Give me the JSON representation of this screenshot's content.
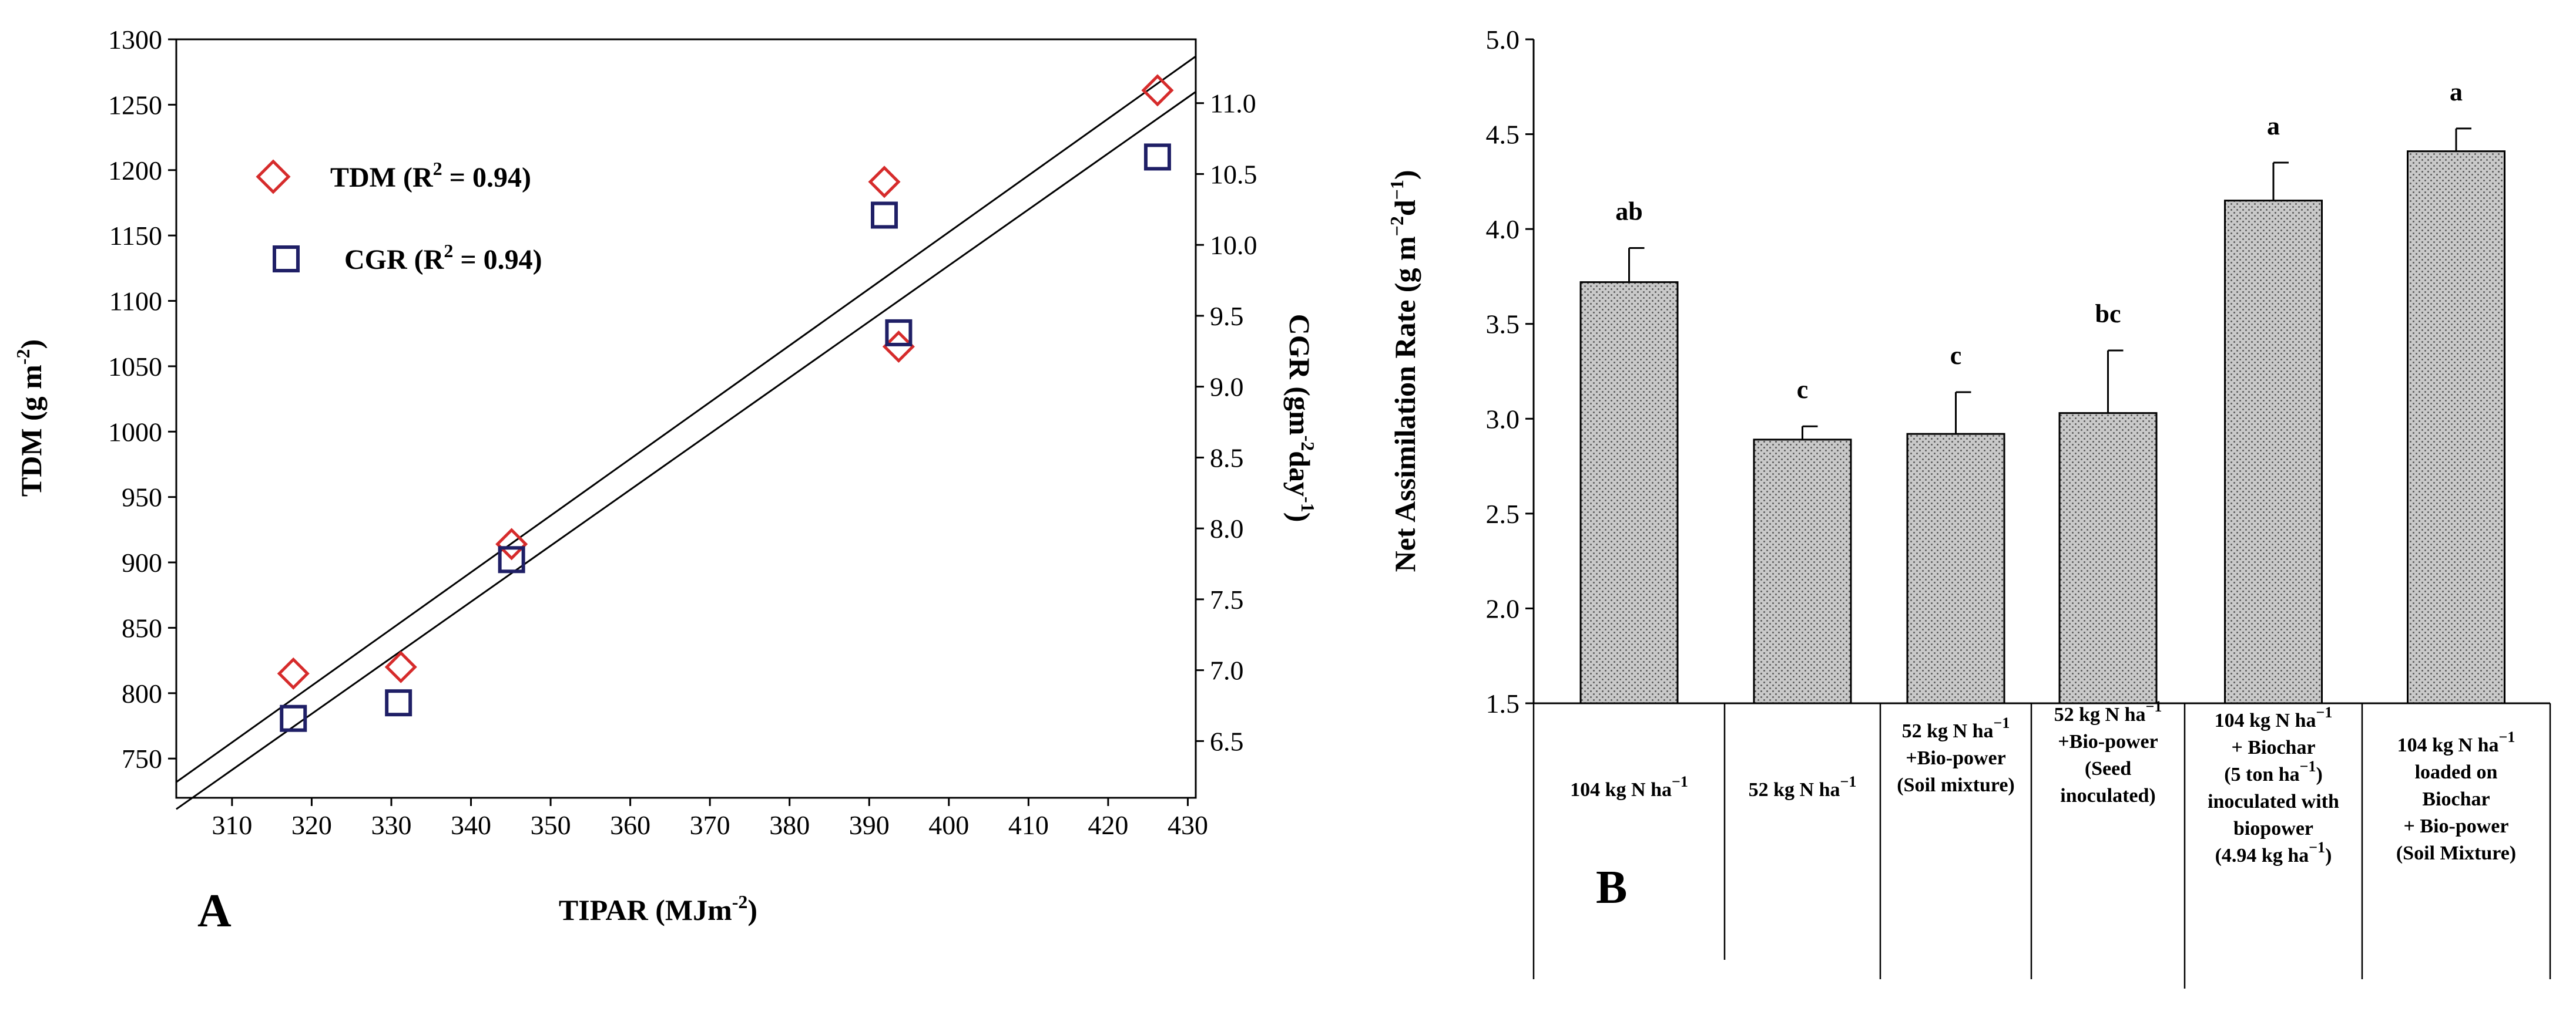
{
  "panel_labels": {
    "a": "A",
    "b": "B"
  },
  "chart_data": [
    {
      "type": "scatter",
      "panel": "A",
      "xlabel": "TIPAR (MJm",
      "xlabel_sup": "-2",
      "xlabel_tail": ")",
      "ylabel": "TDM (g m",
      "ylabel_sup": "-2",
      "ylabel_tail": ")",
      "y2label": "CGR (gm",
      "y2label_sup": "-2",
      "y2label_mid": "day",
      "y2label_sup2": "-1",
      "y2label_tail": ")",
      "xlim": [
        303,
        431
      ],
      "ylim": [
        720,
        1300
      ],
      "y2lim": [
        6.1,
        11.45
      ],
      "xticks": [
        310,
        320,
        330,
        340,
        350,
        360,
        370,
        380,
        390,
        400,
        410,
        420,
        430
      ],
      "yticks": [
        750,
        800,
        850,
        900,
        950,
        1000,
        1050,
        1100,
        1150,
        1200,
        1250,
        1300
      ],
      "y2ticks": [
        "6.5",
        "7.0",
        "7.5",
        "8.0",
        "8.5",
        "9.0",
        "9.5",
        "10.0",
        "10.5",
        "11.0"
      ],
      "series": [
        {
          "name": "TDM",
          "legend": "TDM (R",
          "legend_sup": "2",
          "legend_tail": " = 0.94)",
          "marker": "diamond",
          "color": "#d62b2b",
          "axis": "left",
          "points": [
            [
              317.7,
              815
            ],
            [
              331.2,
              820
            ],
            [
              345.1,
              914
            ],
            [
              391.9,
              1191
            ],
            [
              393.7,
              1065
            ],
            [
              426.2,
              1261
            ]
          ],
          "fit": [
            [
              303,
              732
            ],
            [
              431,
              1287
            ]
          ]
        },
        {
          "name": "CGR",
          "legend": "CGR (R",
          "legend_sup": "2",
          "legend_tail": " = 0.94)",
          "marker": "square",
          "color": "#1f1f66",
          "axis": "right",
          "points": [
            [
              317.7,
              6.66
            ],
            [
              330.9,
              6.77
            ],
            [
              345.1,
              7.78
            ],
            [
              391.9,
              10.21
            ],
            [
              393.7,
              9.38
            ],
            [
              426.2,
              10.62
            ]
          ],
          "fit": [
            [
              303,
              6.02
            ],
            [
              431,
              11.08
            ]
          ]
        }
      ]
    },
    {
      "type": "bar",
      "panel": "B",
      "ylabel": "Net Assimilation Rate (g m",
      "ylabel_sup": "−2",
      "ylabel_mid": "d",
      "ylabel_sup2": "−1",
      "ylabel_tail": ")",
      "ylim": [
        1.5,
        5.0
      ],
      "yticks": [
        "1.5",
        "2.0",
        "2.5",
        "3.0",
        "3.5",
        "4.0",
        "4.5",
        "5.0"
      ],
      "values": [
        3.72,
        2.89,
        2.92,
        3.03,
        4.15,
        4.41
      ],
      "errors": [
        0.18,
        0.07,
        0.22,
        0.33,
        0.2,
        0.12
      ],
      "letters": [
        "ab",
        "c",
        "c",
        "bc",
        "a",
        "a"
      ],
      "categories": [
        "104 kg N ha^−1",
        "52 kg N ha^−1",
        "52 kg N ha^−1 +Bio-power (Soil mixture)",
        "52 kg N ha^−1 +Bio-power (Seed inoculated)",
        "104 kg N ha^−1 + Biochar (5 ton ha^−1) inoculated with biopower (4.94 kg ha^−1)",
        "104 kg N ha^−1 loaded on Biochar + Bio-power (Soil Mixture)"
      ],
      "category_lines": [
        [
          [
            "104 kg N ha",
            "−1"
          ]
        ],
        [
          [
            "52 kg N ha",
            "−1"
          ]
        ],
        [
          [
            "52 kg N ha",
            "−1"
          ],
          [
            "+Bio-power",
            ""
          ],
          [
            "(Soil mixture)",
            ""
          ]
        ],
        [
          [
            "52 kg N ha",
            "−1"
          ],
          [
            "+Bio-power",
            ""
          ],
          [
            "(Seed",
            ""
          ],
          [
            "inoculated)",
            ""
          ]
        ],
        [
          [
            "104 kg N ha",
            "−1"
          ],
          [
            "+ Biochar",
            ""
          ],
          [
            "(5 ton ha",
            "−1",
            ")"
          ],
          [
            "inoculated with",
            ""
          ],
          [
            "biopower",
            ""
          ],
          [
            "(4.94 kg ha",
            "−1",
            ")"
          ]
        ],
        [
          [
            "104 kg N ha",
            "−1"
          ],
          [
            "loaded on",
            ""
          ],
          [
            "Biochar",
            ""
          ],
          [
            "+ Bio-power",
            ""
          ],
          [
            "(Soil Mixture)",
            ""
          ]
        ]
      ]
    }
  ]
}
